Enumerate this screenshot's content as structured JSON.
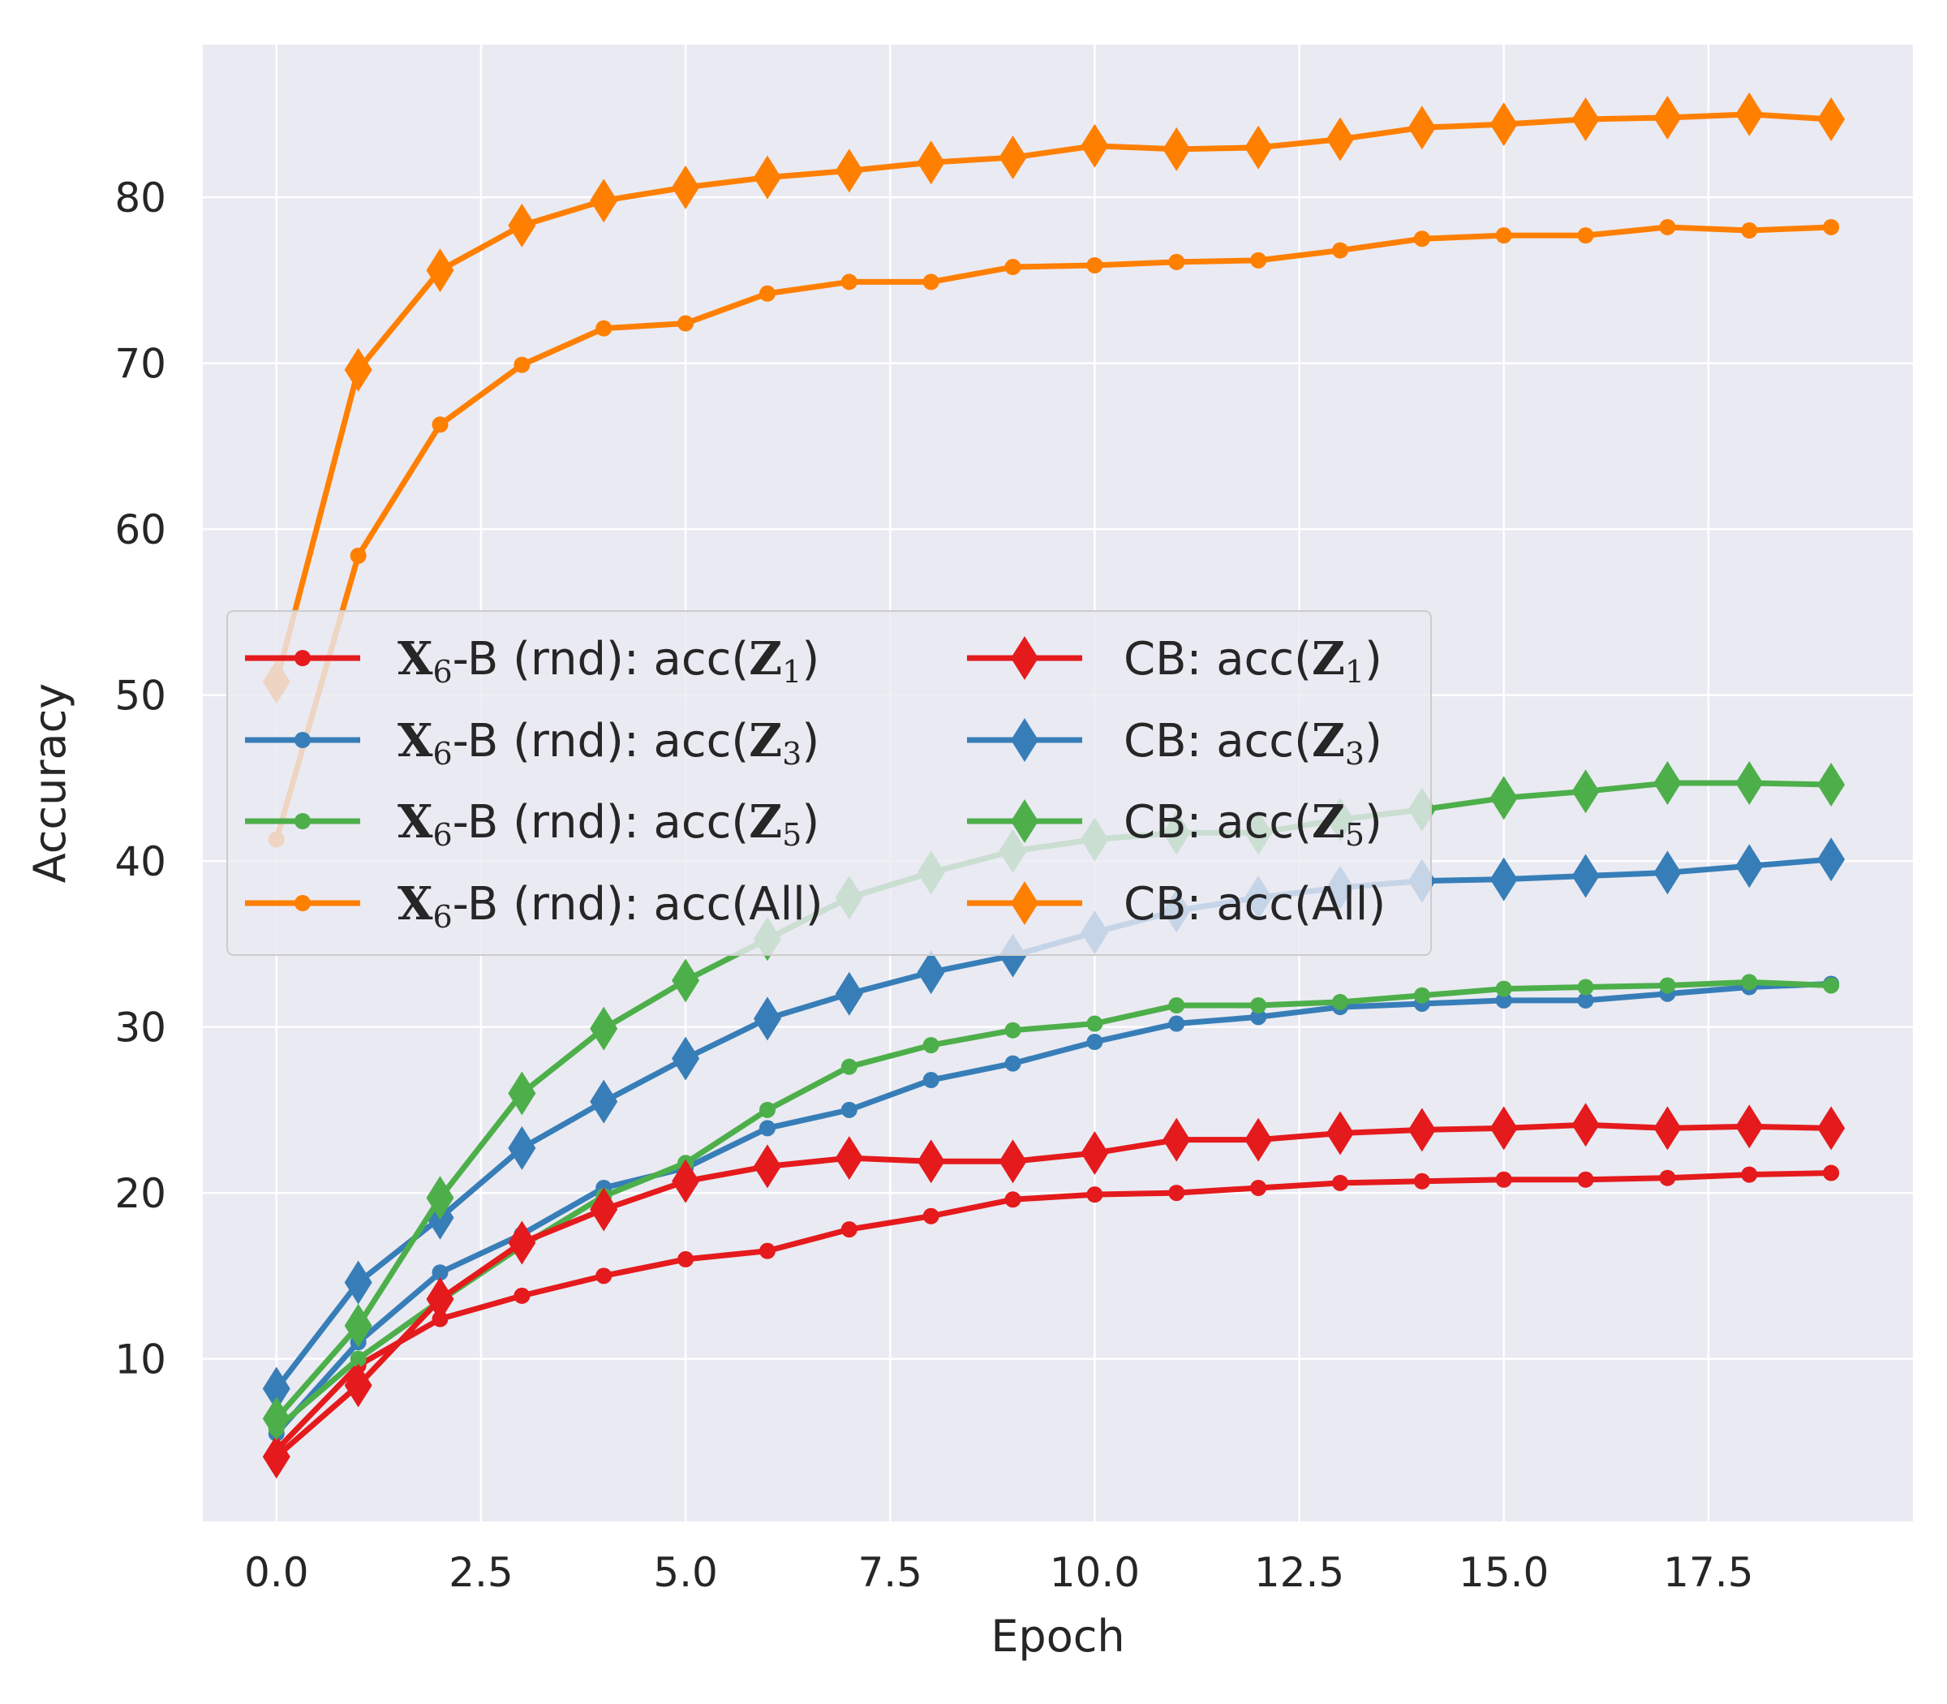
{
  "chart_data": {
    "type": "line",
    "title": "",
    "xlabel": "Epoch",
    "ylabel": "Accuracy",
    "xlim": [
      -0.9,
      20.0
    ],
    "ylim": [
      0.2,
      89.2
    ],
    "xticks": [
      0,
      2.5,
      5,
      7.5,
      10,
      12.5,
      15,
      17.5
    ],
    "xtick_labels": [
      "0.0",
      "2.5",
      "5.0",
      "7.5",
      "10.0",
      "12.5",
      "15.0",
      "17.5"
    ],
    "yticks": [
      10,
      20,
      30,
      40,
      50,
      60,
      70,
      80
    ],
    "ytick_labels": [
      "10",
      "20",
      "30",
      "40",
      "50",
      "60",
      "70",
      "80"
    ],
    "grid": true,
    "legend_position": "center-left",
    "x": [
      0,
      1,
      2,
      3,
      4,
      5,
      6,
      7,
      8,
      9,
      10,
      11,
      12,
      13,
      14,
      15,
      16,
      17,
      18,
      19
    ],
    "series": [
      {
        "name": "X6-B (rnd): acc(Z1)",
        "prefix": "X",
        "sub": "6",
        "mid": "-B (rnd): acc(",
        "var": "Z",
        "var_sub": "1",
        "suffix": ")",
        "marker": "circle",
        "color": "#e41a1c",
        "values": [
          4.5,
          9.6,
          12.4,
          13.8,
          15.0,
          16.0,
          16.5,
          17.8,
          18.6,
          19.6,
          19.9,
          20.0,
          20.3,
          20.6,
          20.7,
          20.8,
          20.8,
          20.9,
          21.1,
          21.2
        ]
      },
      {
        "name": "X6-B (rnd): acc(Z3)",
        "prefix": "X",
        "sub": "6",
        "mid": "-B (rnd): acc(",
        "var": "Z",
        "var_sub": "3",
        "suffix": ")",
        "marker": "circle",
        "color": "#377eb8",
        "values": [
          5.5,
          11.0,
          15.2,
          17.5,
          20.3,
          21.5,
          23.9,
          25.0,
          26.8,
          27.8,
          29.1,
          30.2,
          30.6,
          31.2,
          31.4,
          31.6,
          31.6,
          32.0,
          32.4,
          32.6
        ]
      },
      {
        "name": "X6-B (rnd): acc(Z5)",
        "prefix": "X",
        "sub": "6",
        "mid": "-B (rnd): acc(",
        "var": "Z",
        "var_sub": "5",
        "suffix": ")",
        "marker": "circle",
        "color": "#4daf4a",
        "values": [
          5.8,
          10.0,
          13.5,
          16.8,
          19.8,
          21.8,
          25.0,
          27.6,
          28.9,
          29.8,
          30.2,
          31.3,
          31.3,
          31.5,
          31.9,
          32.3,
          32.4,
          32.5,
          32.7,
          32.5
        ]
      },
      {
        "name": "X6-B (rnd): acc(All)",
        "prefix": "X",
        "sub": "6",
        "mid": "-B (rnd): acc(",
        "var": "",
        "var_sub": "",
        "suffix": "All)",
        "marker": "circle",
        "color": "#ff7f00",
        "values": [
          41.3,
          58.4,
          66.3,
          69.9,
          72.1,
          72.4,
          74.2,
          74.9,
          74.9,
          75.8,
          75.9,
          76.1,
          76.2,
          76.8,
          77.5,
          77.7,
          77.7,
          78.2,
          78.0,
          78.2
        ]
      },
      {
        "name": "CB: acc(Z1)",
        "prefix": "",
        "sub": "",
        "mid": "CB: acc(",
        "var": "Z",
        "var_sub": "1",
        "suffix": ")",
        "marker": "diamond",
        "color": "#e41a1c",
        "values": [
          4.1,
          8.4,
          13.6,
          17.0,
          19.0,
          20.7,
          21.6,
          22.1,
          21.9,
          21.9,
          22.4,
          23.2,
          23.2,
          23.6,
          23.8,
          23.9,
          24.1,
          23.9,
          24.0,
          23.9
        ]
      },
      {
        "name": "CB: acc(Z3)",
        "prefix": "",
        "sub": "",
        "mid": "CB: acc(",
        "var": "Z",
        "var_sub": "3",
        "suffix": ")",
        "marker": "diamond",
        "color": "#377eb8",
        "values": [
          8.2,
          14.6,
          18.5,
          22.7,
          25.5,
          28.1,
          30.5,
          32.0,
          33.3,
          34.3,
          35.7,
          37.0,
          37.8,
          38.4,
          38.8,
          38.9,
          39.1,
          39.3,
          39.7,
          40.1
        ]
      },
      {
        "name": "CB: acc(Z5)",
        "prefix": "",
        "sub": "",
        "mid": "CB: acc(",
        "var": "Z",
        "var_sub": "5",
        "suffix": ")",
        "marker": "diamond",
        "color": "#4daf4a",
        "values": [
          6.4,
          12.0,
          19.7,
          26.0,
          29.9,
          32.8,
          35.3,
          37.8,
          39.3,
          40.6,
          41.3,
          41.7,
          41.7,
          42.5,
          43.1,
          43.8,
          44.2,
          44.7,
          44.7,
          44.6
        ]
      },
      {
        "name": "CB: acc(All)",
        "prefix": "",
        "sub": "",
        "mid": "CB: acc(",
        "var": "",
        "var_sub": "",
        "suffix": "All)",
        "marker": "diamond",
        "color": "#ff7f00",
        "values": [
          50.8,
          69.6,
          75.6,
          78.3,
          79.8,
          80.6,
          81.2,
          81.6,
          82.1,
          82.4,
          83.1,
          82.9,
          83.0,
          83.5,
          84.2,
          84.4,
          84.7,
          84.8,
          85.0,
          84.7
        ]
      }
    ]
  }
}
